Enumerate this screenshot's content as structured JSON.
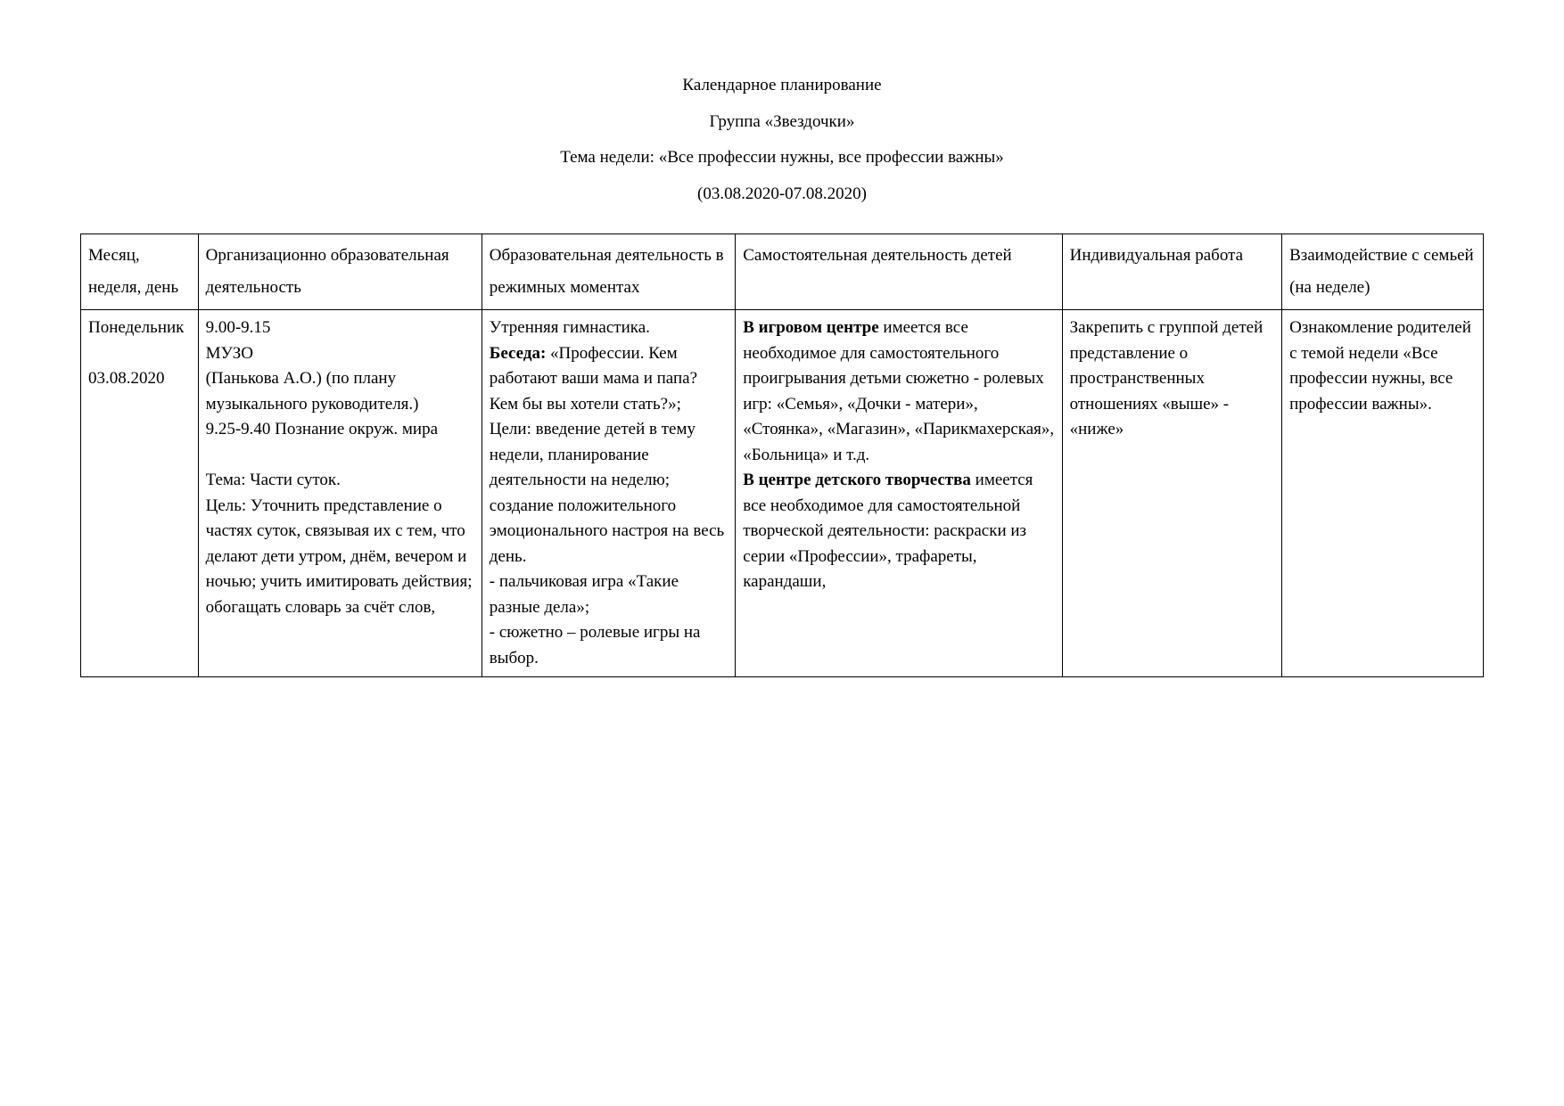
{
  "header": {
    "title": "Календарное планирование",
    "group": "Группа «Звездочки»",
    "theme": "Тема недели: «Все профессии нужны, все профессии важны»",
    "dates": "(03.08.2020-07.08.2020)"
  },
  "table": {
    "columns": [
      "Месяц, неделя, день",
      "Организационно образовательная деятельность",
      "Образовательная деятельность в режимных моментах",
      "Самостоятельная деятельность детей",
      "Индивидуальная работа",
      "Взаимодействие с семьей (на неделе)"
    ],
    "row": {
      "day_name": "Понедельник",
      "day_date": "03.08.2020",
      "col2_l1": "9.00-9.15",
      "col2_l2": "МУЗО",
      "col2_l3": "(Панькова А.О.) (по плану музыкального руководителя.)",
      "col2_l4": "9.25-9.40  Познание окруж. мира",
      "col2_l5": "Тема: Части суток.",
      "col2_l6": "Цель: Уточнить представление о частях суток, связывая их с тем, что делают дети утром, днём, вечером и ночью; учить имитировать действия; обогащать словарь за счёт слов,",
      "col3_l1": "Утренняя гимнастика.",
      "col3_b1": "Беседа:",
      "col3_l2": " «Профессии. Кем работают ваши мама и папа? Кем бы вы хотели стать?»;",
      "col3_l3": "Цели: введение детей в тему недели, планирование деятельности на неделю; создание положительного эмоционального настроя на весь день.",
      "col3_l4": "- пальчиковая игра «Такие разные дела»;",
      "col3_l5": "- сюжетно – ролевые игры на выбор.",
      "col4_b1": "В игровом центре",
      "col4_l1": " имеется все необходимое для самостоятельного проигрывания детьми сюжетно - ролевых игр: «Семья», «Дочки - матери», «Стоянка», «Магазин», «Парикмахерская», «Больница» и т.д.",
      "col4_b2": "В центре детского творчества",
      "col4_l2": " имеется все необходимое для самостоятельной творческой деятельности: раскраски из серии «Профессии», трафареты, карандаши,",
      "col5": "Закрепить с группой детей представление о пространственных отношениях «выше» - «ниже»",
      "col6": "Ознакомление родителей с темой недели «Все профессии нужны, все профессии важны»."
    }
  }
}
